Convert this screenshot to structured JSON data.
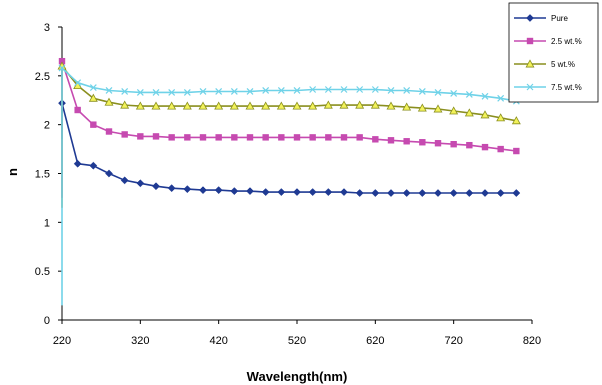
{
  "chart_data": {
    "type": "line",
    "title": "",
    "xlabel": "Wavelength(nm)",
    "ylabel": "n",
    "xlim": [
      220,
      820
    ],
    "ylim": [
      0,
      3
    ],
    "x_ticks": [
      220,
      320,
      420,
      520,
      620,
      720,
      820
    ],
    "y_ticks": [
      0,
      0.5,
      1,
      1.5,
      2,
      2.5,
      3
    ],
    "grid": false,
    "legend_position": "top-right",
    "x": [
      200,
      220,
      240,
      260,
      280,
      300,
      320,
      340,
      360,
      380,
      400,
      420,
      440,
      460,
      480,
      500,
      520,
      540,
      560,
      580,
      600,
      620,
      640,
      660,
      680,
      700,
      720,
      740,
      760,
      780,
      800
    ],
    "series": [
      {
        "name": "Pure",
        "color": "#1f3a93",
        "marker": "diamond",
        "values": [
          1.85,
          2.22,
          1.6,
          1.58,
          1.5,
          1.43,
          1.4,
          1.37,
          1.35,
          1.34,
          1.33,
          1.33,
          1.32,
          1.32,
          1.31,
          1.31,
          1.31,
          1.31,
          1.31,
          1.31,
          1.3,
          1.3,
          1.3,
          1.3,
          1.3,
          1.3,
          1.3,
          1.3,
          1.3,
          1.3,
          1.3
        ]
      },
      {
        "name": "2.5 wt.%",
        "color": "#c64ab0",
        "marker": "square",
        "values": [
          1.25,
          2.65,
          2.15,
          2.0,
          1.93,
          1.9,
          1.88,
          1.88,
          1.87,
          1.87,
          1.87,
          1.87,
          1.87,
          1.87,
          1.87,
          1.87,
          1.87,
          1.87,
          1.87,
          1.87,
          1.87,
          1.85,
          1.84,
          1.83,
          1.82,
          1.81,
          1.8,
          1.79,
          1.77,
          1.75,
          1.73
        ]
      },
      {
        "name": "5 wt.%",
        "color": "#8a8f1f",
        "marker": "triangle",
        "fill": "#f2f25a",
        "values": [
          1.15,
          2.6,
          2.4,
          2.27,
          2.23,
          2.2,
          2.19,
          2.19,
          2.19,
          2.19,
          2.19,
          2.19,
          2.19,
          2.19,
          2.19,
          2.19,
          2.19,
          2.19,
          2.2,
          2.2,
          2.2,
          2.2,
          2.19,
          2.18,
          2.17,
          2.16,
          2.14,
          2.12,
          2.1,
          2.07,
          2.04
        ]
      },
      {
        "name": "7.5 wt.%",
        "color": "#6fd2e8",
        "marker": "x",
        "values": [
          0.15,
          2.58,
          2.43,
          2.38,
          2.35,
          2.34,
          2.33,
          2.33,
          2.33,
          2.33,
          2.34,
          2.34,
          2.34,
          2.34,
          2.35,
          2.35,
          2.35,
          2.36,
          2.36,
          2.36,
          2.36,
          2.36,
          2.35,
          2.35,
          2.34,
          2.33,
          2.32,
          2.31,
          2.29,
          2.27,
          2.24
        ]
      }
    ]
  }
}
